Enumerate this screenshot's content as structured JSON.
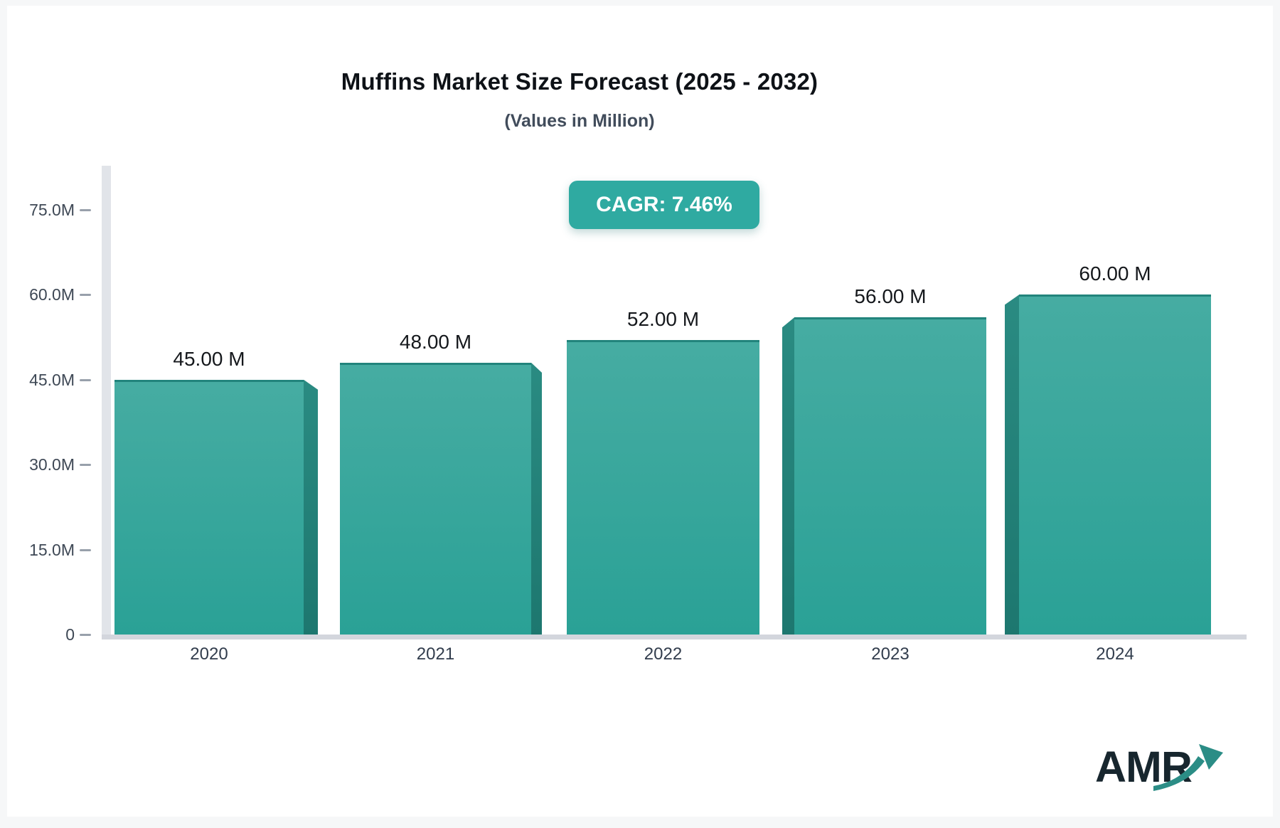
{
  "page": {
    "title": "Muffins Market Size Forecast (2025 - 2032)",
    "subtitle": "(Values in Million)",
    "cagr_badge": "CAGR: 7.46%",
    "logo_text": "AMR"
  },
  "colors": {
    "badge_bg": "#2faaa1",
    "bar_top": "#46aca2",
    "bar_bottom": "#2aa196",
    "bar_edge": "#22847c",
    "bar_side_top": "#2a8b82",
    "bar_side_bottom": "#1d776f",
    "axis_line": "#e1e4e9",
    "baseline": "#d3d6dd",
    "logo_teal": "#2b8d86"
  },
  "chart_data": {
    "type": "bar",
    "title": "Muffins Market Size Forecast (2025 - 2032)",
    "subtitle": "(Values in Million)",
    "annotation": "CAGR: 7.46%",
    "categories": [
      "2020",
      "2021",
      "2022",
      "2023",
      "2024"
    ],
    "values": [
      45,
      48,
      52,
      56,
      60
    ],
    "value_labels": [
      "45.00 M",
      "48.00 M",
      "52.00 M",
      "56.00 M",
      "60.00 M"
    ],
    "xlabel": "",
    "ylabel": "",
    "ylim": [
      0,
      75
    ],
    "yticks": [
      {
        "value": 0,
        "label": "0"
      },
      {
        "value": 15,
        "label": "15.0M"
      },
      {
        "value": 30,
        "label": "30.0M"
      },
      {
        "value": 45,
        "label": "45.0M"
      },
      {
        "value": 60,
        "label": "60.0M"
      },
      {
        "value": 75,
        "label": "75.0M"
      }
    ],
    "grid": false,
    "legend": null
  }
}
